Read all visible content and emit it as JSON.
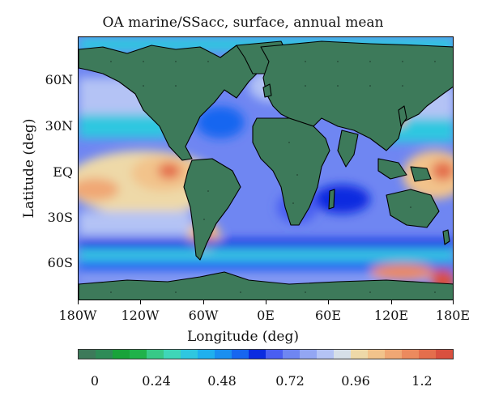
{
  "title": "OA marine/SSacc, surface, annual mean",
  "x_axis": {
    "title": "Longitude (deg)",
    "ticks": [
      "180W",
      "120W",
      "60W",
      "0E",
      "60E",
      "120E",
      "180E"
    ]
  },
  "y_axis": {
    "title": "Latitude (deg)",
    "ticks": [
      "60N",
      "30N",
      "EQ",
      "30S",
      "60S"
    ]
  },
  "colorbar": {
    "labels": [
      "0",
      "0.24",
      "0.48",
      "0.72",
      "0.96",
      "1.2"
    ],
    "colors": [
      "#3d7a5a",
      "#2e8b57",
      "#19a33a",
      "#20b24a",
      "#38c987",
      "#3fd6b8",
      "#2fc7e0",
      "#1fb0ee",
      "#1a8ff0",
      "#1766f0",
      "#0b2be0",
      "#4a5ef2",
      "#6f86f2",
      "#93a6f3",
      "#b4c3f5",
      "#d6dfe8",
      "#eed9a8",
      "#f2c38b",
      "#f0a774",
      "#ec8a5e",
      "#e46e4c",
      "#d9503f"
    ]
  },
  "map": {
    "land_color": "#3d7a5a",
    "ocean_base_color": "#6f86f2",
    "coastline_color": "#000000"
  }
}
